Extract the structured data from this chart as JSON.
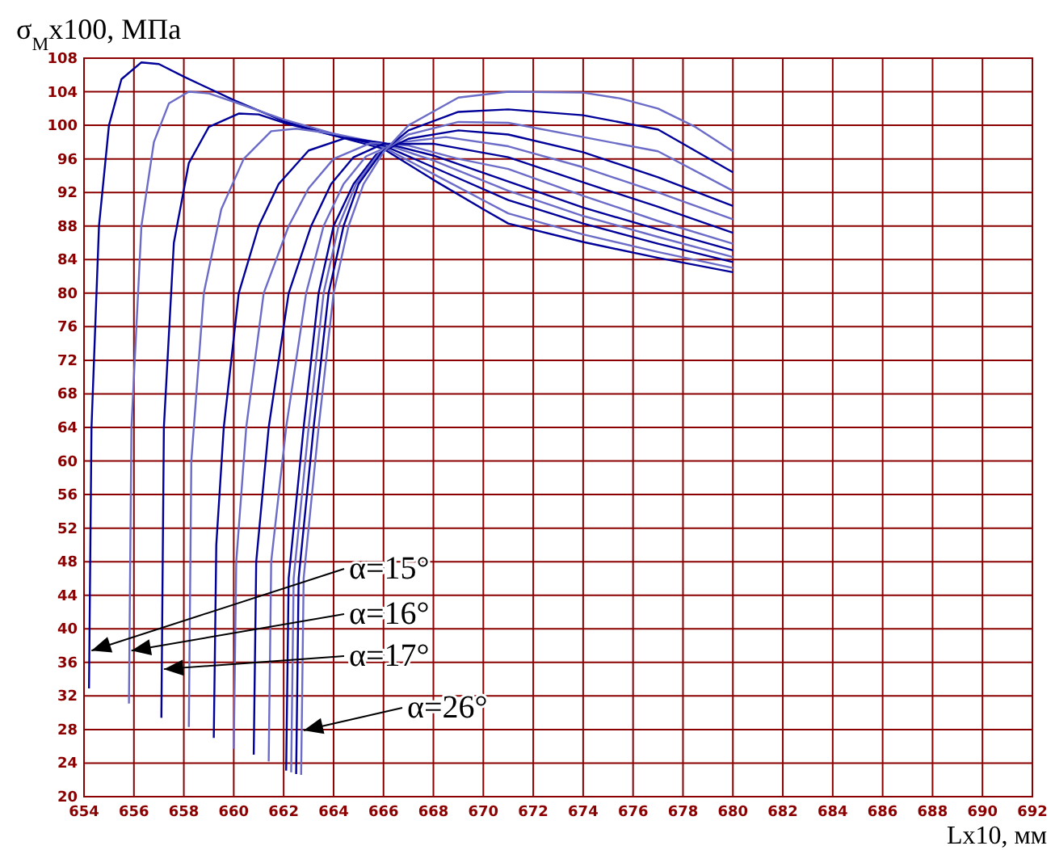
{
  "chart_data": {
    "type": "line",
    "ylabel": "σ$_{М}$x100, МПа",
    "xlabel": "Lx10, мм",
    "xlim": [
      654,
      692
    ],
    "ylim": [
      20,
      108
    ],
    "xticks": [
      654,
      656,
      658,
      660,
      662,
      664,
      666,
      668,
      670,
      672,
      674,
      676,
      678,
      680,
      682,
      684,
      686,
      688,
      690,
      692
    ],
    "yticks": [
      20,
      24,
      28,
      32,
      36,
      40,
      44,
      48,
      52,
      56,
      60,
      64,
      68,
      72,
      76,
      80,
      84,
      88,
      92,
      96,
      100,
      104,
      108
    ],
    "grid": true,
    "marker": "none",
    "line_style": "solid",
    "series": [
      {
        "color": "#000099",
        "x": [
          654.2,
          654.3,
          654.6,
          655,
          655.5,
          656.3,
          657,
          658,
          660,
          662,
          664,
          666,
          668,
          670,
          671,
          674,
          677,
          680
        ],
        "values": [
          32.9,
          64,
          88,
          100,
          105.5,
          107.5,
          107.3,
          105.8,
          103,
          100.5,
          98.8,
          97.2,
          93.5,
          90,
          88.3,
          86.1,
          84.2,
          82.5
        ]
      },
      {
        "color": "#6b6bc8",
        "x": [
          655.8,
          655.9,
          656.3,
          656.8,
          657.4,
          658.2,
          659,
          660,
          662,
          664,
          666,
          668,
          671,
          674,
          677,
          680
        ],
        "values": [
          31.1,
          64,
          88,
          98,
          102.6,
          104,
          103.8,
          102.8,
          100.7,
          99,
          97.4,
          94.2,
          89.5,
          87,
          84.9,
          83
        ]
      },
      {
        "color": "#000099",
        "x": [
          657.1,
          657.2,
          657.6,
          658.2,
          659,
          660.2,
          661,
          662,
          664,
          666,
          668,
          671,
          674,
          677,
          680
        ],
        "values": [
          29.4,
          64,
          86,
          95.5,
          99.8,
          101.4,
          101.3,
          100.3,
          98.8,
          97.6,
          95,
          91.1,
          88.3,
          85.9,
          83.7
        ]
      },
      {
        "color": "#6b6bc8",
        "x": [
          658.2,
          658.3,
          658.8,
          659.5,
          660.4,
          661.5,
          662.5,
          664,
          666,
          668,
          671,
          674,
          677,
          680
        ],
        "values": [
          28.3,
          60,
          80,
          90,
          96,
          99.3,
          99.6,
          99,
          97.8,
          95.8,
          92.2,
          89.2,
          86.7,
          84.3
        ]
      },
      {
        "color": "#000099",
        "x": [
          659.2,
          659.3,
          659.6,
          660.2,
          661,
          661.8,
          663,
          664.5,
          666,
          668,
          671,
          674,
          677,
          680
        ],
        "values": [
          27,
          50,
          64,
          80,
          88,
          93,
          97,
          98.5,
          97.9,
          96.4,
          93.3,
          90.2,
          87.6,
          85.1
        ]
      },
      {
        "color": "#6b6bc8",
        "x": [
          660,
          660.1,
          660.5,
          661.2,
          662.2,
          663,
          664,
          665.5,
          667,
          669,
          671,
          674,
          677,
          680
        ],
        "values": [
          25.7,
          48,
          64,
          80,
          88,
          92.5,
          96,
          97.9,
          97.6,
          96,
          94.8,
          91.6,
          88.6,
          85.9
        ]
      },
      {
        "color": "#000099",
        "x": [
          660.8,
          660.9,
          661.4,
          662.2,
          663.1,
          663.9,
          664.8,
          666,
          668,
          671,
          674,
          677,
          680
        ],
        "values": [
          25,
          48,
          64,
          80,
          88,
          93,
          96.2,
          97.8,
          97.8,
          96.2,
          93.2,
          90.3,
          87.2
        ]
      },
      {
        "color": "#6b6bc8",
        "x": [
          661.4,
          661.5,
          662.1,
          662.9,
          663.6,
          664.4,
          665.3,
          666.5,
          668.5,
          671,
          674,
          677,
          680
        ],
        "values": [
          24.2,
          48,
          64,
          80,
          88,
          93,
          96.3,
          97.9,
          98.6,
          97.5,
          95,
          92,
          88.8
        ]
      },
      {
        "color": "#000099",
        "x": [
          662.1,
          662.2,
          662.8,
          663.4,
          664,
          664.8,
          665.7,
          667,
          669,
          671,
          674,
          677,
          680
        ],
        "values": [
          23.1,
          46,
          64,
          80,
          88,
          93,
          96.5,
          98.4,
          99.4,
          98.9,
          96.8,
          93.8,
          90.4
        ]
      },
      {
        "color": "#6b6bc8",
        "x": [
          662.3,
          662.4,
          663,
          663.6,
          664.2,
          664.9,
          665.8,
          667,
          669,
          671,
          674,
          677,
          680
        ],
        "values": [
          22.9,
          46,
          64,
          80,
          88,
          93,
          96.6,
          98.9,
          100.4,
          100.3,
          98.6,
          96.9,
          92.2
        ]
      },
      {
        "color": "#000099",
        "x": [
          662.5,
          662.6,
          663.2,
          663.8,
          664.4,
          665,
          665.9,
          667,
          669,
          671,
          674,
          677,
          680
        ],
        "values": [
          22.7,
          46,
          64,
          80,
          88,
          93,
          96.7,
          99.4,
          101.6,
          101.9,
          101.2,
          99.5,
          94.4
        ]
      },
      {
        "color": "#6b6bc8",
        "x": [
          662.7,
          662.8,
          663.4,
          664,
          664.6,
          665.2,
          666,
          667,
          669,
          671,
          674,
          675.5,
          677,
          678.5,
          680
        ],
        "values": [
          22.6,
          46,
          64,
          80,
          88,
          93,
          96.8,
          100,
          103.3,
          104,
          103.9,
          103.2,
          102,
          99.8,
          96.9
        ]
      }
    ],
    "annotations": [
      {
        "text": "α=15°",
        "x": 654.3,
        "y": 37.4
      },
      {
        "text": "α=16°",
        "x": 655.9,
        "y": 37.4
      },
      {
        "text": "α=17°",
        "x": 657.2,
        "y": 35.2
      },
      {
        "text": "α=26°",
        "x": 662.8,
        "y": 27.9
      }
    ]
  }
}
